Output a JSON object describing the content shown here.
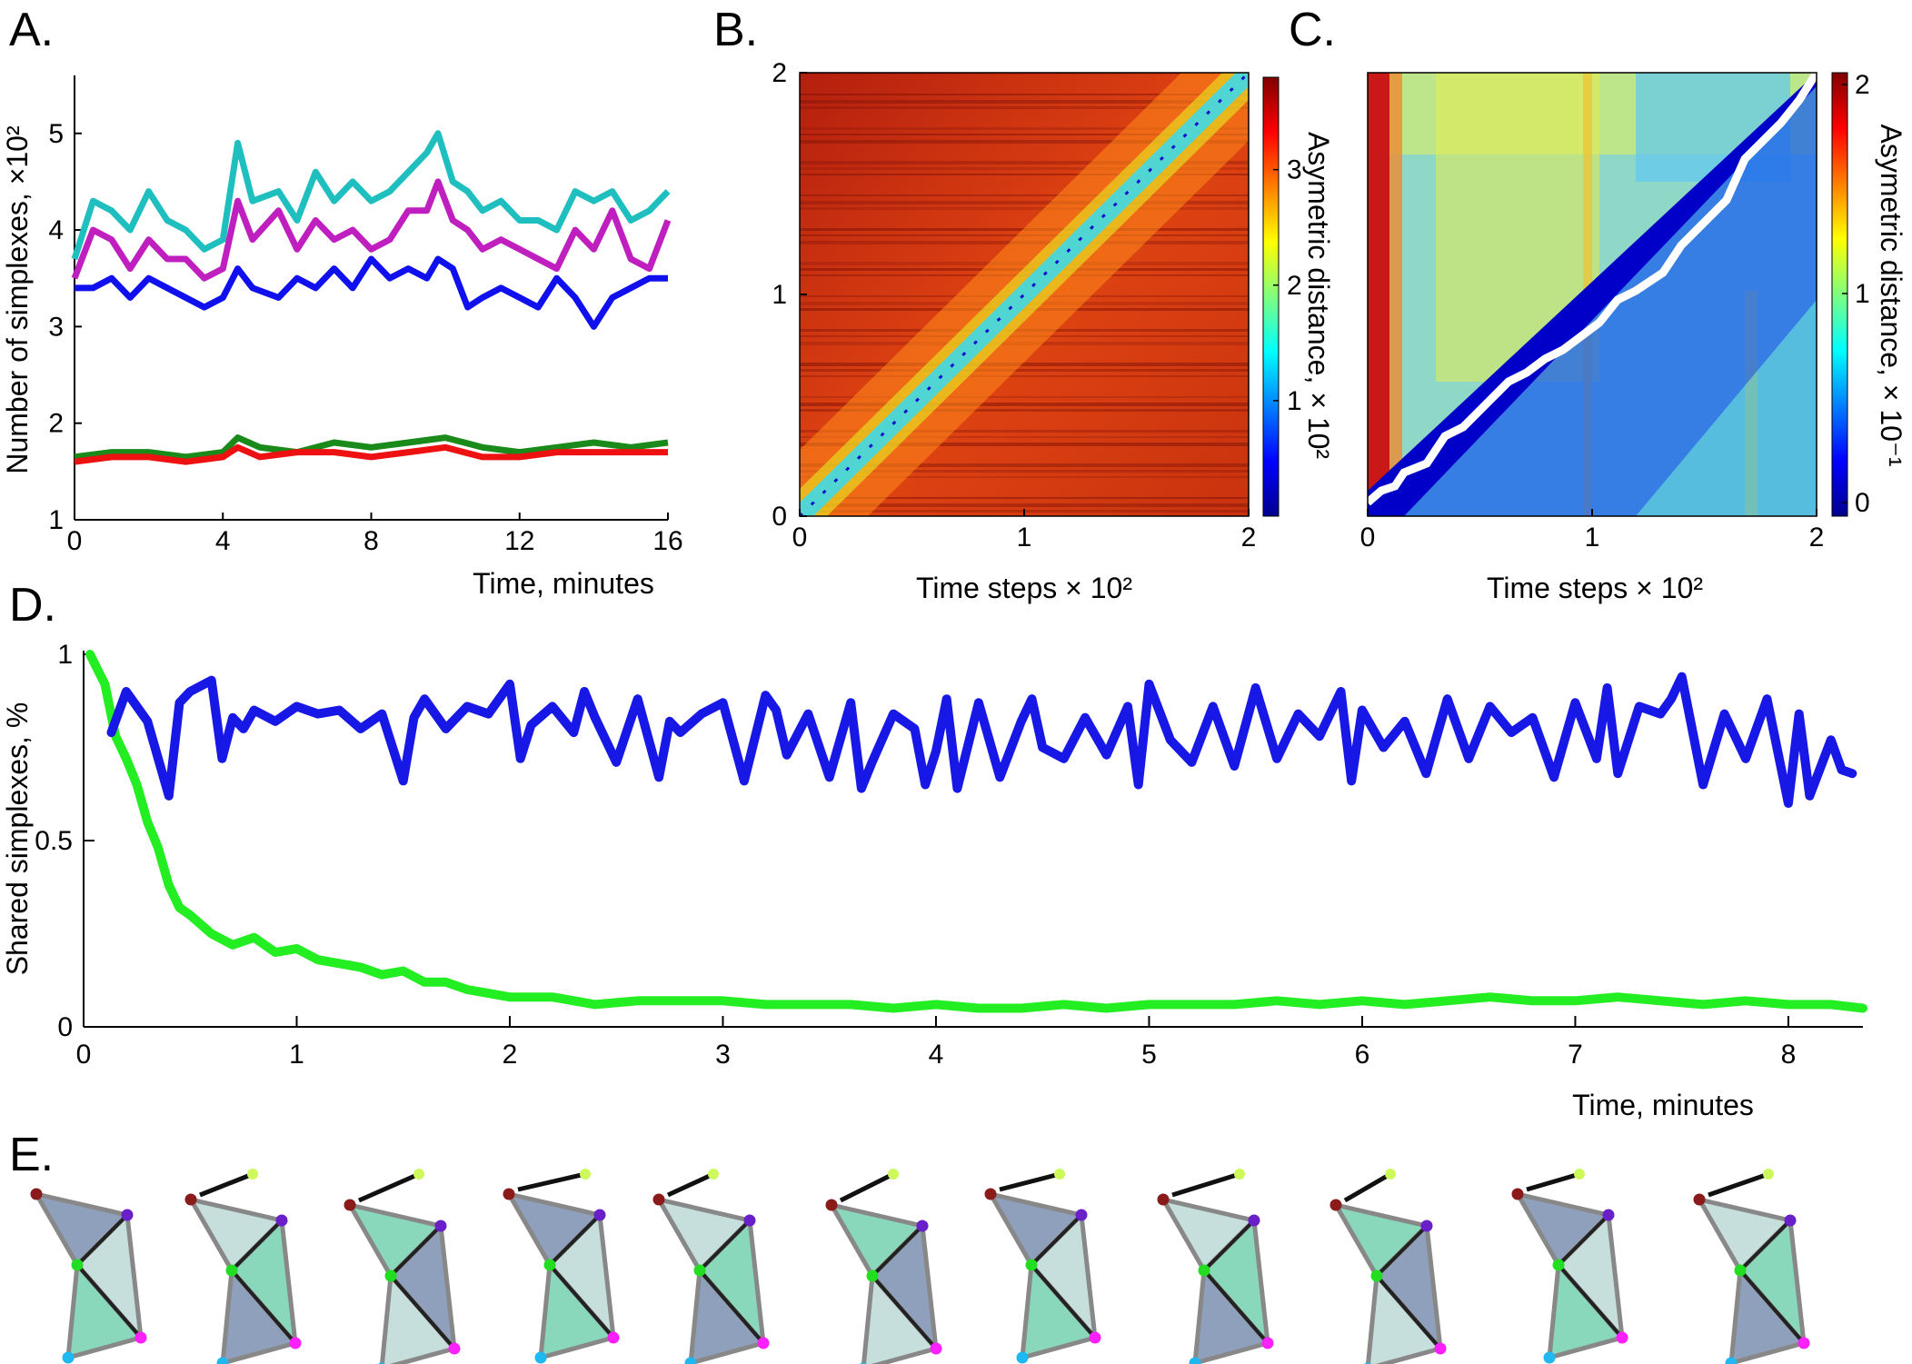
{
  "figure": {
    "panel_letters": [
      "A.",
      "B.",
      "C.",
      "D.",
      "E."
    ]
  },
  "chart_data": [
    {
      "panel": "A.",
      "type": "line",
      "xlabel": "Time, minutes",
      "ylabel": "Number of simplexes, ×10²",
      "xlim": [
        0,
        16
      ],
      "ylim": [
        1,
        5.6
      ],
      "xticks": [
        "0",
        "4",
        "8",
        "12",
        "16"
      ],
      "yticks": [
        "1",
        "2",
        "3",
        "4",
        "5"
      ],
      "series": [
        {
          "color": "#1fbfbf",
          "x": [
            0,
            0.5,
            1,
            1.5,
            2,
            2.5,
            3,
            3.5,
            4,
            4.4,
            4.8,
            5.5,
            6,
            6.5,
            7,
            7.5,
            8,
            8.5,
            9,
            9.5,
            9.8,
            10.2,
            10.6,
            11,
            11.5,
            12,
            12.5,
            13,
            13.5,
            14,
            14.5,
            15,
            15.5,
            16
          ],
          "y": [
            3.7,
            4.3,
            4.2,
            4.0,
            4.4,
            4.1,
            4.0,
            3.8,
            3.9,
            4.9,
            4.3,
            4.4,
            4.1,
            4.6,
            4.3,
            4.5,
            4.3,
            4.4,
            4.6,
            4.8,
            5.0,
            4.5,
            4.4,
            4.2,
            4.3,
            4.1,
            4.1,
            4.0,
            4.4,
            4.3,
            4.4,
            4.1,
            4.2,
            4.4
          ]
        },
        {
          "color": "#bf1fbf",
          "x": [
            0,
            0.5,
            1,
            1.5,
            2,
            2.5,
            3,
            3.5,
            4,
            4.4,
            4.8,
            5.5,
            6,
            6.5,
            7,
            7.5,
            8,
            8.5,
            9,
            9.5,
            9.8,
            10.2,
            10.6,
            11,
            11.5,
            12,
            12.5,
            13,
            13.5,
            14,
            14.5,
            15,
            15.5,
            16
          ],
          "y": [
            3.5,
            4.0,
            3.9,
            3.6,
            3.9,
            3.7,
            3.7,
            3.5,
            3.6,
            4.3,
            3.9,
            4.2,
            3.8,
            4.1,
            3.9,
            4.0,
            3.8,
            3.9,
            4.2,
            4.2,
            4.5,
            4.1,
            4.0,
            3.8,
            3.9,
            3.8,
            3.7,
            3.6,
            4.0,
            3.8,
            4.2,
            3.7,
            3.6,
            4.1
          ]
        },
        {
          "color": "#1010ee",
          "x": [
            0,
            0.5,
            1,
            1.5,
            2,
            2.5,
            3,
            3.5,
            4,
            4.4,
            4.8,
            5.5,
            6,
            6.5,
            7,
            7.5,
            8,
            8.5,
            9,
            9.5,
            9.8,
            10.2,
            10.6,
            11,
            11.5,
            12,
            12.5,
            13,
            13.5,
            14,
            14.5,
            15,
            15.5,
            16
          ],
          "y": [
            3.4,
            3.4,
            3.5,
            3.3,
            3.5,
            3.4,
            3.3,
            3.2,
            3.3,
            3.6,
            3.4,
            3.3,
            3.5,
            3.4,
            3.6,
            3.4,
            3.7,
            3.5,
            3.6,
            3.5,
            3.7,
            3.6,
            3.2,
            3.3,
            3.4,
            3.3,
            3.2,
            3.5,
            3.3,
            3.0,
            3.3,
            3.4,
            3.5,
            3.5
          ]
        },
        {
          "color": "#1a8a1a",
          "x": [
            0,
            1,
            2,
            3,
            4,
            4.4,
            5,
            6,
            7,
            8,
            9,
            10,
            11,
            12,
            13,
            14,
            15,
            16
          ],
          "y": [
            1.65,
            1.7,
            1.7,
            1.65,
            1.7,
            1.85,
            1.75,
            1.7,
            1.8,
            1.75,
            1.8,
            1.85,
            1.75,
            1.7,
            1.75,
            1.8,
            1.75,
            1.8
          ]
        },
        {
          "color": "#ee1111",
          "x": [
            0,
            1,
            2,
            3,
            4,
            4.4,
            5,
            6,
            7,
            8,
            9,
            10,
            11,
            12,
            13,
            14,
            15,
            16
          ],
          "y": [
            1.6,
            1.65,
            1.65,
            1.6,
            1.65,
            1.75,
            1.65,
            1.7,
            1.7,
            1.65,
            1.7,
            1.75,
            1.65,
            1.65,
            1.7,
            1.7,
            1.7,
            1.7
          ]
        }
      ]
    },
    {
      "panel": "B.",
      "type": "heatmap",
      "xlabel": "Time steps × 10²",
      "colorbar_label": "Asymetric distance, × 10²",
      "xlim": [
        0,
        2
      ],
      "ylim": [
        0,
        2
      ],
      "xticks": [
        "0",
        "1",
        "2"
      ],
      "yticks": [
        "0",
        "1",
        "2"
      ],
      "colorbar_ticks": [
        "1",
        "2",
        "3"
      ],
      "colorbar_range": [
        0,
        3.8
      ]
    },
    {
      "panel": "C.",
      "type": "heatmap",
      "xlabel": "Time steps × 10²",
      "colorbar_label": "Asymetric distance, × 10⁻¹",
      "xlim": [
        0,
        2
      ],
      "ylim": [
        0,
        2
      ],
      "xticks": [
        "0",
        "1",
        "2"
      ],
      "colorbar_ticks": [
        "0",
        "1",
        "2"
      ],
      "colorbar_range": [
        0,
        2.1
      ]
    },
    {
      "panel": "D.",
      "type": "line",
      "xlabel": "Time, minutes",
      "ylabel": "Shared simplexes, %",
      "xlim": [
        0,
        8.35
      ],
      "ylim": [
        0,
        1
      ],
      "xticks": [
        "0",
        "1",
        "2",
        "3",
        "4",
        "5",
        "6",
        "7",
        "8"
      ],
      "yticks": [
        "0",
        "0.5",
        "1"
      ],
      "series": [
        {
          "color": "#1818e6",
          "x": [
            0.13,
            0.2,
            0.3,
            0.4,
            0.45,
            0.5,
            0.6,
            0.65,
            0.7,
            0.75,
            0.8,
            0.9,
            1.0,
            1.1,
            1.2,
            1.3,
            1.4,
            1.5,
            1.55,
            1.6,
            1.7,
            1.8,
            1.9,
            2.0,
            2.05,
            2.1,
            2.2,
            2.3,
            2.35,
            2.4,
            2.5,
            2.6,
            2.7,
            2.75,
            2.8,
            2.9,
            3.0,
            3.1,
            3.2,
            3.25,
            3.3,
            3.4,
            3.5,
            3.6,
            3.65,
            3.7,
            3.8,
            3.9,
            3.95,
            4.0,
            4.05,
            4.1,
            4.2,
            4.3,
            4.4,
            4.45,
            4.5,
            4.6,
            4.7,
            4.8,
            4.9,
            4.95,
            5.0,
            5.1,
            5.2,
            5.3,
            5.4,
            5.5,
            5.6,
            5.7,
            5.8,
            5.9,
            5.95,
            6.0,
            6.1,
            6.2,
            6.3,
            6.4,
            6.5,
            6.6,
            6.7,
            6.8,
            6.9,
            7.0,
            7.1,
            7.15,
            7.2,
            7.3,
            7.4,
            7.45,
            7.5,
            7.6,
            7.7,
            7.8,
            7.9,
            8.0,
            8.05,
            8.1,
            8.2,
            8.25,
            8.3
          ],
          "y": [
            0.79,
            0.9,
            0.82,
            0.62,
            0.87,
            0.9,
            0.93,
            0.72,
            0.83,
            0.8,
            0.85,
            0.82,
            0.86,
            0.84,
            0.85,
            0.8,
            0.84,
            0.66,
            0.83,
            0.88,
            0.8,
            0.86,
            0.84,
            0.92,
            0.72,
            0.81,
            0.86,
            0.79,
            0.9,
            0.83,
            0.71,
            0.88,
            0.67,
            0.82,
            0.79,
            0.84,
            0.87,
            0.66,
            0.89,
            0.85,
            0.73,
            0.84,
            0.67,
            0.87,
            0.64,
            0.71,
            0.84,
            0.8,
            0.65,
            0.74,
            0.88,
            0.64,
            0.87,
            0.67,
            0.82,
            0.88,
            0.75,
            0.72,
            0.83,
            0.73,
            0.86,
            0.65,
            0.92,
            0.77,
            0.71,
            0.86,
            0.7,
            0.91,
            0.72,
            0.84,
            0.78,
            0.9,
            0.66,
            0.85,
            0.75,
            0.82,
            0.68,
            0.88,
            0.72,
            0.86,
            0.79,
            0.83,
            0.67,
            0.87,
            0.72,
            0.91,
            0.68,
            0.86,
            0.84,
            0.88,
            0.94,
            0.65,
            0.84,
            0.72,
            0.88,
            0.6,
            0.84,
            0.62,
            0.77,
            0.69,
            0.68
          ]
        },
        {
          "color": "#22ee22",
          "x": [
            0.03,
            0.1,
            0.15,
            0.2,
            0.25,
            0.3,
            0.35,
            0.4,
            0.45,
            0.5,
            0.6,
            0.7,
            0.8,
            0.9,
            1.0,
            1.1,
            1.2,
            1.3,
            1.4,
            1.5,
            1.6,
            1.7,
            1.8,
            1.9,
            2.0,
            2.2,
            2.4,
            2.6,
            2.8,
            3.0,
            3.2,
            3.4,
            3.6,
            3.8,
            4.0,
            4.2,
            4.4,
            4.6,
            4.8,
            5.0,
            5.2,
            5.4,
            5.6,
            5.8,
            6.0,
            6.2,
            6.4,
            6.6,
            6.8,
            7.0,
            7.2,
            7.4,
            7.6,
            7.8,
            8.0,
            8.2,
            8.35
          ],
          "y": [
            1.0,
            0.92,
            0.78,
            0.72,
            0.65,
            0.55,
            0.48,
            0.38,
            0.32,
            0.3,
            0.25,
            0.22,
            0.24,
            0.2,
            0.21,
            0.18,
            0.17,
            0.16,
            0.14,
            0.15,
            0.12,
            0.12,
            0.1,
            0.09,
            0.08,
            0.08,
            0.06,
            0.07,
            0.07,
            0.07,
            0.06,
            0.06,
            0.06,
            0.05,
            0.06,
            0.05,
            0.05,
            0.06,
            0.05,
            0.06,
            0.06,
            0.06,
            0.07,
            0.06,
            0.07,
            0.06,
            0.07,
            0.08,
            0.07,
            0.07,
            0.08,
            0.07,
            0.06,
            0.07,
            0.06,
            0.06,
            0.05
          ]
        }
      ]
    }
  ]
}
